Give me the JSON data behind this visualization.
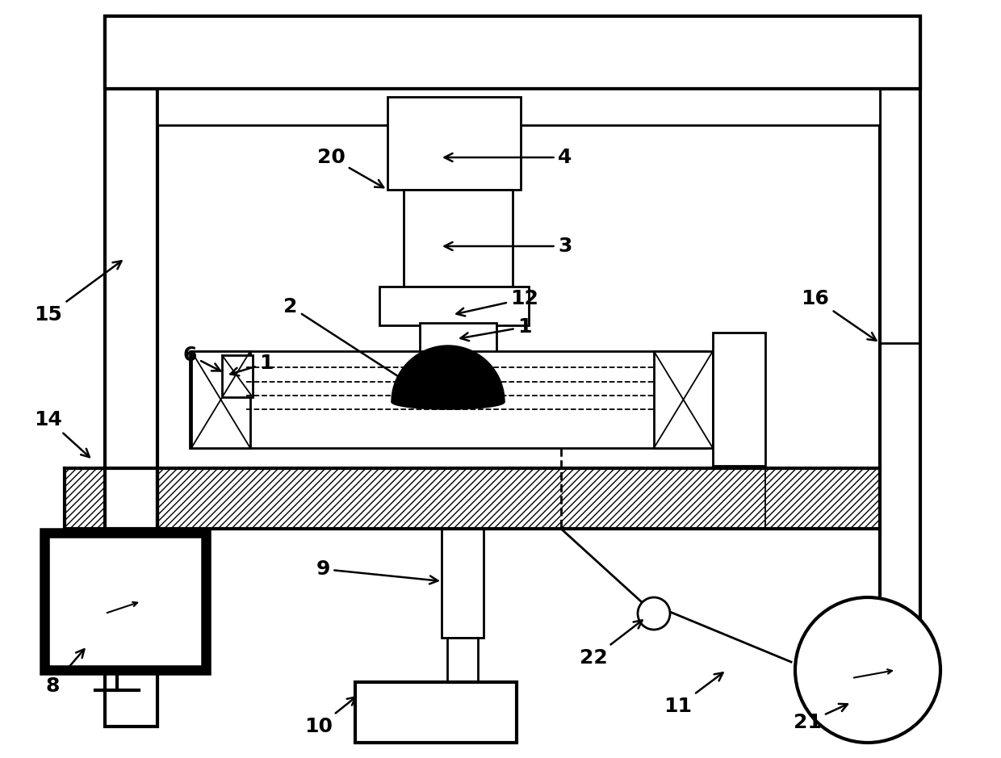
{
  "bg": "#ffffff",
  "lc": "#000000",
  "lw": 2.0,
  "lw_thick": 3.0,
  "lw_thin": 1.3,
  "fs_label": 17
}
